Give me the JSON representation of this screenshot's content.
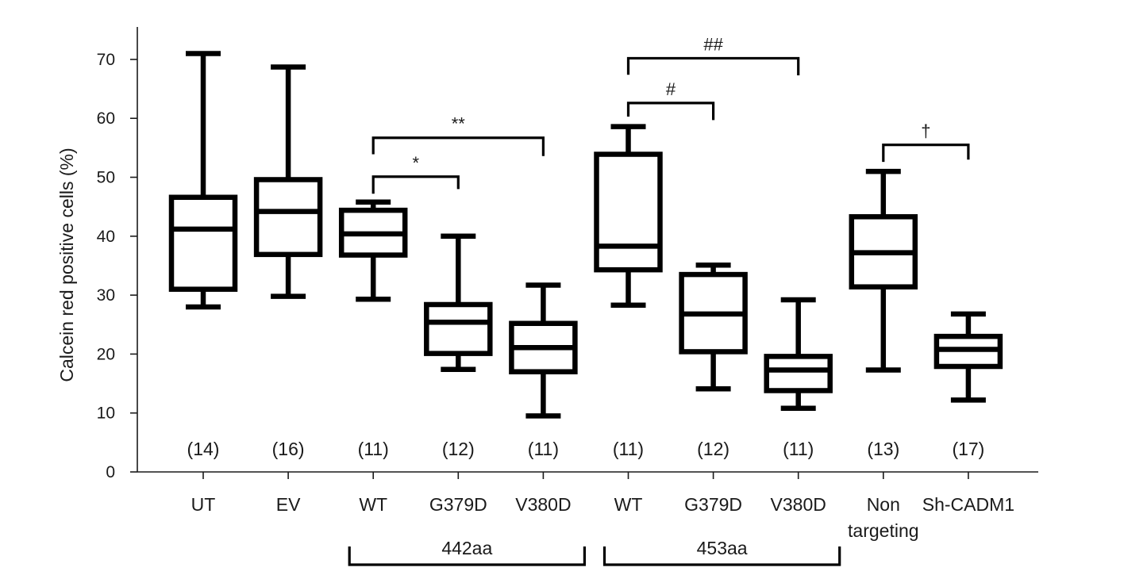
{
  "chart_data": {
    "type": "boxplot",
    "ylabel": "Calcein red positive cells (%)",
    "ylim": [
      0,
      75
    ],
    "yticks": [
      0,
      10,
      20,
      30,
      40,
      50,
      60,
      70
    ],
    "boxes": [
      {
        "label": "UT",
        "n": "(14)",
        "min": 28,
        "q1": 31,
        "median": 41.2,
        "q3": 46.6,
        "max": 71
      },
      {
        "label": "EV",
        "n": "(16)",
        "min": 29.8,
        "q1": 36.9,
        "median": 44.2,
        "q3": 49.6,
        "max": 68.7
      },
      {
        "label": "WT",
        "n": "(11)",
        "min": 29.3,
        "q1": 36.8,
        "median": 40.4,
        "q3": 44.4,
        "max": 45.8
      },
      {
        "label": "G379D",
        "n": "(12)",
        "min": 17.4,
        "q1": 20.1,
        "median": 25.4,
        "q3": 28.4,
        "max": 40
      },
      {
        "label": "V380D",
        "n": "(11)",
        "min": 9.5,
        "q1": 17,
        "median": 21.1,
        "q3": 25.2,
        "max": 31.7
      },
      {
        "label": "WT",
        "n": "(11)",
        "min": 28.3,
        "q1": 34.3,
        "median": 38.3,
        "q3": 53.9,
        "max": 58.6
      },
      {
        "label": "G379D",
        "n": "(12)",
        "min": 14.1,
        "q1": 20.4,
        "median": 26.8,
        "q3": 33.5,
        "max": 35.1
      },
      {
        "label": "V380D",
        "n": "(11)",
        "min": 10.8,
        "q1": 13.8,
        "median": 17.3,
        "q3": 19.6,
        "max": 29.2
      },
      {
        "label": [
          "Non",
          "targeting"
        ],
        "n": "(13)",
        "min": 17.3,
        "q1": 31.4,
        "median": 37.2,
        "q3": 43.3,
        "max": 51
      },
      {
        "label": "Sh-CADM1",
        "n": "(17)",
        "min": 12.2,
        "q1": 17.9,
        "median": 20.8,
        "q3": 23,
        "max": 26.8
      }
    ],
    "groups": [
      {
        "label": "442aa",
        "from": 2,
        "to": 4
      },
      {
        "label": "453aa",
        "from": 5,
        "to": 7
      }
    ],
    "significance": [
      {
        "label": "*",
        "from": 2,
        "to": 3,
        "y": 50.1,
        "drop_left": 47.2,
        "drop_right": 48.0
      },
      {
        "label": "**",
        "from": 2,
        "to": 4,
        "y": 56.7,
        "drop_left": 53.9,
        "drop_right": 53.6
      },
      {
        "label": "#",
        "from": 5,
        "to": 6,
        "y": 62.6,
        "drop_left": 60.3,
        "drop_right": 59.7
      },
      {
        "label": "##",
        "from": 5,
        "to": 7,
        "y": 70.2,
        "drop_left": 67.4,
        "drop_right": 67.3
      },
      {
        "label": "†",
        "from": 8,
        "to": 9,
        "y": 55.5,
        "drop_left": 52.6,
        "drop_right": 53.0
      }
    ],
    "colors": {
      "line": "#000000",
      "axis": "#1a1a1a",
      "text": "#1a1a1a"
    }
  }
}
